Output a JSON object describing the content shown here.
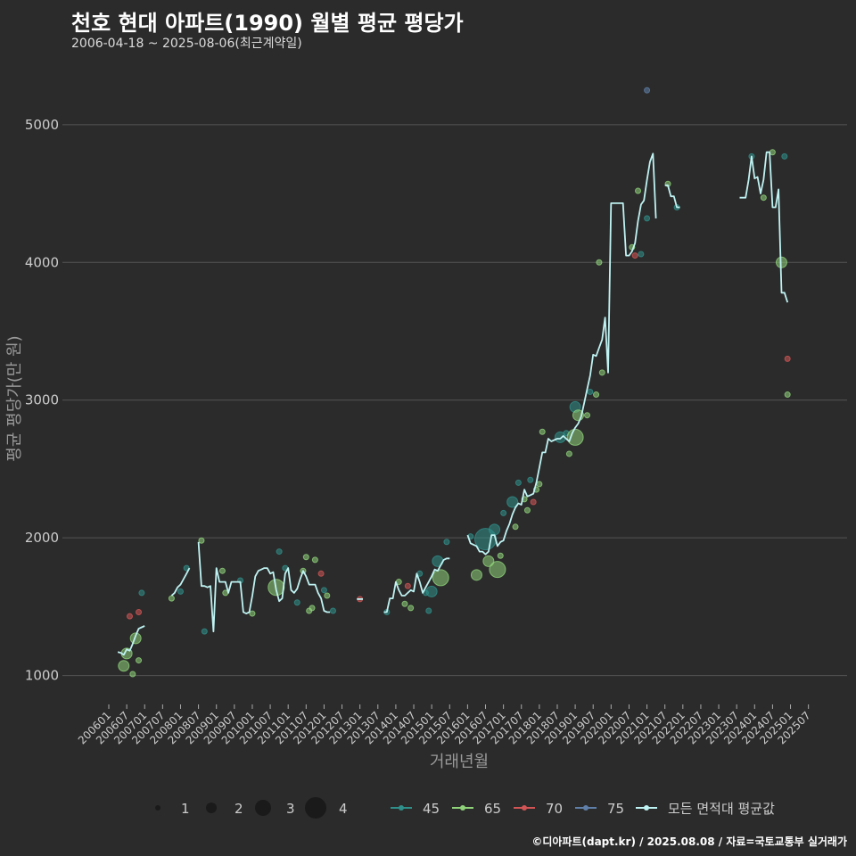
{
  "title": "천호 현대 아파트(1990) 월별 평균 평당가",
  "subtitle": "2006-04-18 ~ 2025-08-06(최근계약일)",
  "source": "©디아파트(dapt.kr) / 2025.08.08 / 자료=국토교통부 실거래가",
  "colors": {
    "bg": "#2b2b2b",
    "grid": "#555555",
    "avg": "#bff2f2",
    "s45": "#2f8f8a",
    "s65": "#8fd27a",
    "s70": "#d25555",
    "s75": "#5f7fa8"
  },
  "chart_data": {
    "type": "line+scatter",
    "title": "천호 현대 아파트(1990) 월별 평균 평당가",
    "xlabel": "거래년월",
    "ylabel": "평균 평당가(만 원)",
    "ylim": [
      790,
      5420
    ],
    "yticks": [
      1000,
      2000,
      3000,
      4000,
      5000
    ],
    "x_start": "2006-01",
    "xlim_months": [
      0,
      235
    ],
    "xtick_labels": [
      "200601",
      "200607",
      "200701",
      "200707",
      "200801",
      "200807",
      "200901",
      "200907",
      "201001",
      "201007",
      "201101",
      "201107",
      "201201",
      "201207",
      "201301",
      "201307",
      "201401",
      "201407",
      "201501",
      "201507",
      "201601",
      "201607",
      "201701",
      "201707",
      "201801",
      "201807",
      "201901",
      "201907",
      "202001",
      "202007",
      "202101",
      "202107",
      "202201",
      "202207",
      "202301",
      "202307",
      "202401",
      "202407",
      "202501",
      "202507"
    ],
    "legend_size": {
      "labels": [
        "1",
        "2",
        "3",
        "4"
      ],
      "values": [
        1,
        2,
        3,
        4
      ]
    },
    "legend_color": {
      "labels": [
        "45",
        "65",
        "70",
        "75",
        "모든 면적대 평균값"
      ]
    },
    "avg_line": [
      [
        [
          3,
          1170
        ],
        [
          4,
          1165
        ],
        [
          5,
          1150
        ],
        [
          6,
          1190
        ],
        [
          7,
          1180
        ],
        [
          8,
          1230
        ],
        [
          9,
          1290
        ],
        [
          10,
          1340
        ],
        [
          11,
          1350
        ],
        [
          12,
          1360
        ]
      ],
      [
        [
          21,
          1580
        ],
        [
          22,
          1600
        ],
        [
          23,
          1640
        ],
        [
          24,
          1660
        ],
        [
          25,
          1700
        ],
        [
          26,
          1740
        ],
        [
          27,
          1780
        ]
      ],
      [
        [
          30,
          1970
        ],
        [
          31,
          1650
        ],
        [
          32,
          1650
        ],
        [
          33,
          1640
        ],
        [
          34,
          1650
        ],
        [
          35,
          1320
        ],
        [
          36,
          1780
        ],
        [
          37,
          1680
        ],
        [
          38,
          1680
        ],
        [
          39,
          1680
        ],
        [
          40,
          1600
        ],
        [
          41,
          1680
        ],
        [
          42,
          1680
        ],
        [
          43,
          1680
        ],
        [
          44,
          1680
        ],
        [
          45,
          1460
        ],
        [
          46,
          1450
        ],
        [
          47,
          1460
        ],
        [
          48,
          1580
        ],
        [
          49,
          1720
        ],
        [
          50,
          1760
        ],
        [
          51,
          1770
        ],
        [
          52,
          1780
        ],
        [
          53,
          1780
        ],
        [
          54,
          1740
        ],
        [
          55,
          1750
        ],
        [
          56,
          1620
        ],
        [
          57,
          1540
        ],
        [
          58,
          1560
        ],
        [
          59,
          1740
        ],
        [
          60,
          1780
        ],
        [
          61,
          1620
        ],
        [
          62,
          1600
        ],
        [
          63,
          1630
        ],
        [
          64,
          1700
        ],
        [
          65,
          1760
        ],
        [
          66,
          1720
        ],
        [
          67,
          1660
        ],
        [
          68,
          1660
        ],
        [
          69,
          1660
        ],
        [
          70,
          1600
        ],
        [
          71,
          1560
        ],
        [
          72,
          1470
        ],
        [
          73,
          1460
        ],
        [
          74,
          1460
        ]
      ],
      [
        [
          83,
          1555
        ],
        [
          84,
          1555
        ],
        [
          85,
          1555
        ]
      ],
      [
        [
          92,
          1460
        ],
        [
          93,
          1460
        ],
        [
          94,
          1560
        ],
        [
          95,
          1560
        ],
        [
          96,
          1680
        ],
        [
          97,
          1620
        ],
        [
          98,
          1580
        ],
        [
          99,
          1580
        ],
        [
          100,
          1600
        ],
        [
          101,
          1620
        ],
        [
          102,
          1610
        ],
        [
          103,
          1740
        ],
        [
          104,
          1680
        ],
        [
          105,
          1600
        ],
        [
          106,
          1640
        ],
        [
          107,
          1680
        ],
        [
          108,
          1720
        ],
        [
          109,
          1770
        ],
        [
          110,
          1760
        ],
        [
          111,
          1800
        ],
        [
          112,
          1840
        ],
        [
          113,
          1850
        ],
        [
          114,
          1850
        ]
      ],
      [
        [
          120,
          2020
        ],
        [
          121,
          1960
        ],
        [
          122,
          1950
        ],
        [
          123,
          1940
        ],
        [
          124,
          1900
        ],
        [
          125,
          1900
        ],
        [
          126,
          1880
        ],
        [
          127,
          1900
        ],
        [
          128,
          2020
        ],
        [
          129,
          2020
        ],
        [
          130,
          1940
        ],
        [
          131,
          1970
        ],
        [
          132,
          1980
        ],
        [
          133,
          2050
        ],
        [
          134,
          2100
        ],
        [
          135,
          2170
        ],
        [
          136,
          2220
        ],
        [
          137,
          2250
        ],
        [
          138,
          2240
        ],
        [
          139,
          2350
        ],
        [
          140,
          2300
        ],
        [
          141,
          2310
        ],
        [
          142,
          2320
        ],
        [
          143,
          2400
        ],
        [
          144,
          2510
        ],
        [
          145,
          2620
        ],
        [
          146,
          2620
        ],
        [
          147,
          2720
        ],
        [
          148,
          2700
        ],
        [
          149,
          2710
        ],
        [
          150,
          2720
        ],
        [
          151,
          2720
        ],
        [
          152,
          2740
        ],
        [
          153,
          2720
        ],
        [
          154,
          2700
        ],
        [
          155,
          2760
        ],
        [
          156,
          2800
        ],
        [
          157,
          2830
        ],
        [
          158,
          2880
        ],
        [
          159,
          2980
        ],
        [
          160,
          3080
        ],
        [
          161,
          3180
        ],
        [
          162,
          3330
        ],
        [
          163,
          3320
        ],
        [
          164,
          3380
        ],
        [
          165,
          3440
        ],
        [
          166,
          3600
        ],
        [
          167,
          3200
        ],
        [
          168,
          4430
        ],
        [
          169,
          4430
        ],
        [
          170,
          4430
        ],
        [
          171,
          4430
        ],
        [
          172,
          4430
        ],
        [
          173,
          4050
        ],
        [
          174,
          4050
        ],
        [
          175,
          4080
        ],
        [
          176,
          4140
        ],
        [
          177,
          4300
        ],
        [
          178,
          4420
        ],
        [
          179,
          4450
        ],
        [
          180,
          4600
        ],
        [
          181,
          4730
        ],
        [
          182,
          4790
        ],
        [
          183,
          4320
        ]
      ],
      [
        [
          186,
          4560
        ],
        [
          187,
          4560
        ],
        [
          188,
          4480
        ],
        [
          189,
          4480
        ],
        [
          190,
          4400
        ],
        [
          191,
          4400
        ]
      ],
      [
        [
          211,
          4470
        ],
        [
          212,
          4470
        ],
        [
          213,
          4470
        ],
        [
          214,
          4600
        ],
        [
          215,
          4770
        ],
        [
          216,
          4610
        ],
        [
          217,
          4620
        ],
        [
          218,
          4500
        ],
        [
          219,
          4600
        ],
        [
          220,
          4800
        ],
        [
          221,
          4800
        ],
        [
          222,
          4400
        ],
        [
          223,
          4400
        ],
        [
          224,
          4530
        ],
        [
          225,
          3780
        ],
        [
          226,
          3780
        ],
        [
          227,
          3710
        ]
      ]
    ],
    "points": [
      {
        "s": "65",
        "x": 5,
        "y": 1070,
        "n": 2
      },
      {
        "s": "65",
        "x": 6,
        "y": 1160,
        "n": 2
      },
      {
        "s": "65",
        "x": 9,
        "y": 1270,
        "n": 2
      },
      {
        "s": "65",
        "x": 10,
        "y": 1110,
        "n": 1
      },
      {
        "s": "70",
        "x": 7,
        "y": 1430,
        "n": 1
      },
      {
        "s": "70",
        "x": 10,
        "y": 1460,
        "n": 1
      },
      {
        "s": "45",
        "x": 11,
        "y": 1600,
        "n": 1
      },
      {
        "s": "65",
        "x": 8,
        "y": 1010,
        "n": 1
      },
      {
        "s": "65",
        "x": 21,
        "y": 1560,
        "n": 1
      },
      {
        "s": "45",
        "x": 24,
        "y": 1610,
        "n": 1
      },
      {
        "s": "45",
        "x": 26,
        "y": 1780,
        "n": 1
      },
      {
        "s": "65",
        "x": 31,
        "y": 1980,
        "n": 1
      },
      {
        "s": "45",
        "x": 32,
        "y": 1320,
        "n": 1
      },
      {
        "s": "65",
        "x": 38,
        "y": 1760,
        "n": 1
      },
      {
        "s": "65",
        "x": 39,
        "y": 1600,
        "n": 1
      },
      {
        "s": "45",
        "x": 44,
        "y": 1690,
        "n": 1
      },
      {
        "s": "65",
        "x": 48,
        "y": 1450,
        "n": 1
      },
      {
        "s": "65",
        "x": 56,
        "y": 1640,
        "n": 3
      },
      {
        "s": "45",
        "x": 57,
        "y": 1900,
        "n": 1
      },
      {
        "s": "45",
        "x": 59,
        "y": 1780,
        "n": 1
      },
      {
        "s": "45",
        "x": 63,
        "y": 1530,
        "n": 1
      },
      {
        "s": "65",
        "x": 65,
        "y": 1760,
        "n": 1
      },
      {
        "s": "65",
        "x": 66,
        "y": 1860,
        "n": 1
      },
      {
        "s": "65",
        "x": 67,
        "y": 1470,
        "n": 1
      },
      {
        "s": "65",
        "x": 68,
        "y": 1490,
        "n": 1
      },
      {
        "s": "65",
        "x": 69,
        "y": 1840,
        "n": 1
      },
      {
        "s": "70",
        "x": 71,
        "y": 1740,
        "n": 1
      },
      {
        "s": "45",
        "x": 72,
        "y": 1620,
        "n": 1
      },
      {
        "s": "65",
        "x": 73,
        "y": 1580,
        "n": 1
      },
      {
        "s": "45",
        "x": 75,
        "y": 1470,
        "n": 1
      },
      {
        "s": "70",
        "x": 84,
        "y": 1555,
        "n": 1
      },
      {
        "s": "45",
        "x": 93,
        "y": 1460,
        "n": 1
      },
      {
        "s": "65",
        "x": 97,
        "y": 1680,
        "n": 1
      },
      {
        "s": "65",
        "x": 99,
        "y": 1520,
        "n": 1
      },
      {
        "s": "70",
        "x": 100,
        "y": 1650,
        "n": 1
      },
      {
        "s": "65",
        "x": 101,
        "y": 1490,
        "n": 1
      },
      {
        "s": "45",
        "x": 104,
        "y": 1740,
        "n": 1
      },
      {
        "s": "45",
        "x": 106,
        "y": 1600,
        "n": 1
      },
      {
        "s": "45",
        "x": 107,
        "y": 1470,
        "n": 1
      },
      {
        "s": "45",
        "x": 108,
        "y": 1610,
        "n": 2
      },
      {
        "s": "45",
        "x": 110,
        "y": 1830,
        "n": 2
      },
      {
        "s": "65",
        "x": 111,
        "y": 1710,
        "n": 3
      },
      {
        "s": "45",
        "x": 113,
        "y": 1970,
        "n": 1
      },
      {
        "s": "45",
        "x": 121,
        "y": 2010,
        "n": 1
      },
      {
        "s": "65",
        "x": 123,
        "y": 1730,
        "n": 2
      },
      {
        "s": "45",
        "x": 126,
        "y": 1990,
        "n": 4
      },
      {
        "s": "65",
        "x": 127,
        "y": 1830,
        "n": 2
      },
      {
        "s": "45",
        "x": 129,
        "y": 2060,
        "n": 2
      },
      {
        "s": "65",
        "x": 130,
        "y": 1770,
        "n": 3
      },
      {
        "s": "65",
        "x": 131,
        "y": 1870,
        "n": 1
      },
      {
        "s": "45",
        "x": 132,
        "y": 2180,
        "n": 1
      },
      {
        "s": "45",
        "x": 135,
        "y": 2260,
        "n": 2
      },
      {
        "s": "65",
        "x": 136,
        "y": 2080,
        "n": 1
      },
      {
        "s": "45",
        "x": 137,
        "y": 2400,
        "n": 1
      },
      {
        "s": "65",
        "x": 139,
        "y": 2280,
        "n": 1
      },
      {
        "s": "65",
        "x": 140,
        "y": 2200,
        "n": 1
      },
      {
        "s": "45",
        "x": 141,
        "y": 2420,
        "n": 1
      },
      {
        "s": "70",
        "x": 142,
        "y": 2260,
        "n": 1
      },
      {
        "s": "65",
        "x": 143,
        "y": 2350,
        "n": 1
      },
      {
        "s": "65",
        "x": 144,
        "y": 2390,
        "n": 1
      },
      {
        "s": "65",
        "x": 145,
        "y": 2770,
        "n": 1
      },
      {
        "s": "45",
        "x": 151,
        "y": 2730,
        "n": 2
      },
      {
        "s": "45",
        "x": 153,
        "y": 2760,
        "n": 1
      },
      {
        "s": "65",
        "x": 154,
        "y": 2610,
        "n": 1
      },
      {
        "s": "65",
        "x": 156,
        "y": 2730,
        "n": 3
      },
      {
        "s": "45",
        "x": 156,
        "y": 2950,
        "n": 2
      },
      {
        "s": "65",
        "x": 157,
        "y": 2890,
        "n": 2
      },
      {
        "s": "65",
        "x": 160,
        "y": 2890,
        "n": 1
      },
      {
        "s": "45",
        "x": 161,
        "y": 3060,
        "n": 1
      },
      {
        "s": "65",
        "x": 163,
        "y": 3040,
        "n": 1
      },
      {
        "s": "65",
        "x": 164,
        "y": 4000,
        "n": 1
      },
      {
        "s": "65",
        "x": 165,
        "y": 3200,
        "n": 1
      },
      {
        "s": "65",
        "x": 175,
        "y": 4110,
        "n": 1
      },
      {
        "s": "70",
        "x": 176,
        "y": 4050,
        "n": 1
      },
      {
        "s": "65",
        "x": 177,
        "y": 4520,
        "n": 1
      },
      {
        "s": "45",
        "x": 178,
        "y": 4060,
        "n": 1
      },
      {
        "s": "45",
        "x": 180,
        "y": 4320,
        "n": 1
      },
      {
        "s": "75",
        "x": 180,
        "y": 5250,
        "n": 1
      },
      {
        "s": "65",
        "x": 187,
        "y": 4570,
        "n": 1
      },
      {
        "s": "45",
        "x": 190,
        "y": 4400,
        "n": 1
      },
      {
        "s": "45",
        "x": 215,
        "y": 4770,
        "n": 1
      },
      {
        "s": "65",
        "x": 219,
        "y": 4470,
        "n": 1
      },
      {
        "s": "65",
        "x": 222,
        "y": 4800,
        "n": 1
      },
      {
        "s": "65",
        "x": 225,
        "y": 4000,
        "n": 2
      },
      {
        "s": "70",
        "x": 227,
        "y": 3300,
        "n": 1
      },
      {
        "s": "65",
        "x": 227,
        "y": 3040,
        "n": 1
      },
      {
        "s": "45",
        "x": 226,
        "y": 4770,
        "n": 1
      }
    ]
  }
}
